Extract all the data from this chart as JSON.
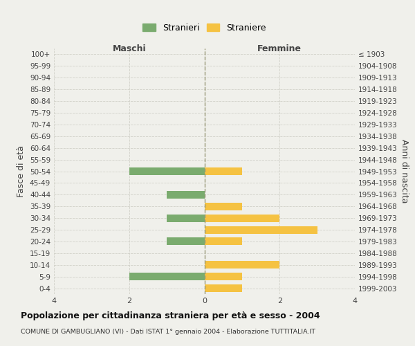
{
  "age_groups": [
    "100+",
    "95-99",
    "90-94",
    "85-89",
    "80-84",
    "75-79",
    "70-74",
    "65-69",
    "60-64",
    "55-59",
    "50-54",
    "45-49",
    "40-44",
    "35-39",
    "30-34",
    "25-29",
    "20-24",
    "15-19",
    "10-14",
    "5-9",
    "0-4"
  ],
  "birth_years": [
    "≤ 1903",
    "1904-1908",
    "1909-1913",
    "1914-1918",
    "1919-1923",
    "1924-1928",
    "1929-1933",
    "1934-1938",
    "1939-1943",
    "1944-1948",
    "1949-1953",
    "1954-1958",
    "1959-1963",
    "1964-1968",
    "1969-1973",
    "1974-1978",
    "1979-1983",
    "1984-1988",
    "1989-1993",
    "1994-1998",
    "1999-2003"
  ],
  "males": [
    0,
    0,
    0,
    0,
    0,
    0,
    0,
    0,
    0,
    0,
    2,
    0,
    1,
    0,
    1,
    0,
    1,
    0,
    0,
    2,
    0
  ],
  "females": [
    0,
    0,
    0,
    0,
    0,
    0,
    0,
    0,
    0,
    0,
    1,
    0,
    0,
    1,
    2,
    3,
    1,
    0,
    2,
    1,
    1
  ],
  "male_color": "#7aab6e",
  "female_color": "#f5c242",
  "background_color": "#f0f0eb",
  "grid_color": "#d0d0c8",
  "center_line_color": "#999977",
  "xlim": 4,
  "xlabel_male": "Maschi",
  "xlabel_female": "Femmine",
  "ylabel_left": "Fasce di età",
  "ylabel_right": "Anni di nascita",
  "legend_male": "Stranieri",
  "legend_female": "Straniere",
  "title": "Popolazione per cittadinanza straniera per età e sesso - 2004",
  "subtitle": "COMUNE DI GAMBUGLIANO (VI) - Dati ISTAT 1° gennaio 2004 - Elaborazione TUTTITALIA.IT",
  "xticks": [
    -4,
    -2,
    0,
    2,
    4
  ],
  "xticklabels": [
    "4",
    "2",
    "0",
    "2",
    "4"
  ]
}
